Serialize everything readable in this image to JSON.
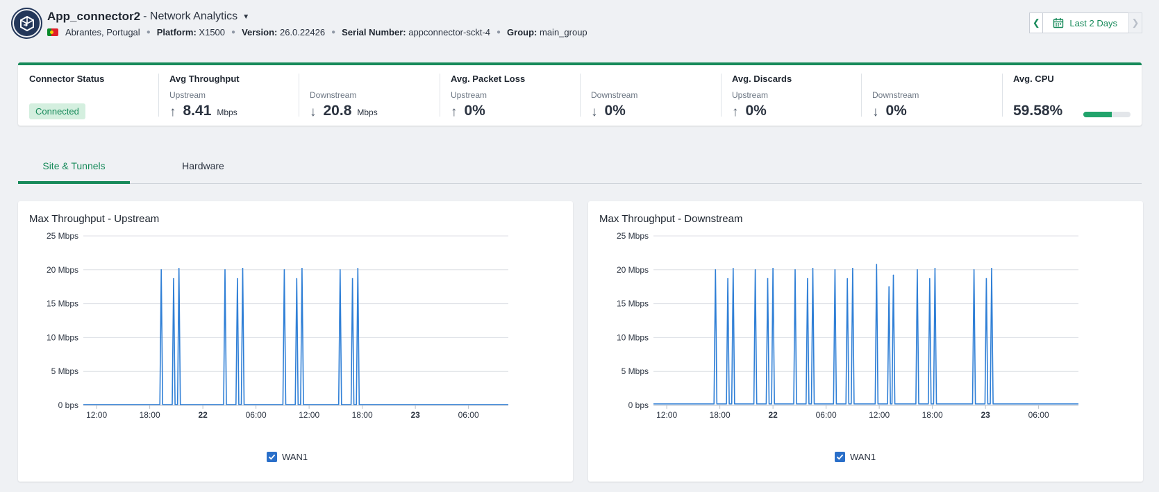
{
  "header": {
    "app_name": "App_connector2",
    "title_suffix": "- Network Analytics",
    "location": "Abrantes, Portugal",
    "platform_label": "Platform:",
    "platform_value": "X1500",
    "version_label": "Version:",
    "version_value": "26.0.22426",
    "serial_label": "Serial Number:",
    "serial_value": "appconnector-sckt-4",
    "group_label": "Group:",
    "group_value": "main_group",
    "date_range": "Last 2 Days"
  },
  "kpi": {
    "connector_status": {
      "title": "Connector Status",
      "value": "Connected"
    },
    "throughput": {
      "title": "Avg Throughput",
      "up_label": "Upstream",
      "up_value": "8.41",
      "up_unit": "Mbps",
      "down_label": "Downstream",
      "down_value": "20.8",
      "down_unit": "Mbps"
    },
    "packet_loss": {
      "title": "Avg. Packet Loss",
      "up_label": "Upstream",
      "up_value": "0%",
      "down_label": "Downstream",
      "down_value": "0%"
    },
    "discards": {
      "title": "Avg. Discards",
      "up_label": "Upstream",
      "up_value": "0%",
      "down_label": "Downstream",
      "down_value": "0%"
    },
    "cpu": {
      "title": "Avg. CPU",
      "value": "59.58%",
      "fraction": 0.5958
    }
  },
  "tabs": [
    {
      "label": "Site & Tunnels",
      "active": true
    },
    {
      "label": "Hardware",
      "active": false
    }
  ],
  "colors": {
    "accent": "#178a5a",
    "series": "#2f7fd6"
  },
  "chart_data": [
    {
      "type": "line",
      "title": "Max Throughput - Upstream",
      "ylim": [
        0,
        25
      ],
      "yticks": [
        "0 bps",
        "5 Mbps",
        "10 Mbps",
        "15 Mbps",
        "20 Mbps",
        "25 Mbps"
      ],
      "xlim": [
        10.5,
        58.5
      ],
      "xticks": [
        {
          "t": 12,
          "label": "12:00",
          "bold": false
        },
        {
          "t": 18,
          "label": "18:00",
          "bold": false
        },
        {
          "t": 24,
          "label": "22",
          "bold": true
        },
        {
          "t": 30,
          "label": "06:00",
          "bold": false
        },
        {
          "t": 36,
          "label": "12:00",
          "bold": false
        },
        {
          "t": 42,
          "label": "18:00",
          "bold": false
        },
        {
          "t": 48,
          "label": "23",
          "bold": true
        },
        {
          "t": 54,
          "label": "06:00",
          "bold": false
        }
      ],
      "series": [
        {
          "name": "WAN1",
          "spikes": [
            [
              19.3,
              20.0
            ],
            [
              20.7,
              18.7
            ],
            [
              21.3,
              20.2
            ],
            [
              26.5,
              20.0
            ],
            [
              27.9,
              18.7
            ],
            [
              28.5,
              20.2
            ],
            [
              33.2,
              20.0
            ],
            [
              34.6,
              18.7
            ],
            [
              35.2,
              20.2
            ],
            [
              39.5,
              20.0
            ],
            [
              40.9,
              18.7
            ],
            [
              41.5,
              20.2
            ]
          ],
          "baseline": 0.1
        }
      ],
      "legend": "WAN1"
    },
    {
      "type": "line",
      "title": "Max Throughput - Downstream",
      "ylim": [
        0,
        25
      ],
      "yticks": [
        "0 bps",
        "5 Mbps",
        "10 Mbps",
        "15 Mbps",
        "20 Mbps",
        "25 Mbps"
      ],
      "xlim": [
        10.5,
        58.5
      ],
      "xticks": [
        {
          "t": 12,
          "label": "12:00",
          "bold": false
        },
        {
          "t": 18,
          "label": "18:00",
          "bold": false
        },
        {
          "t": 24,
          "label": "22",
          "bold": true
        },
        {
          "t": 30,
          "label": "06:00",
          "bold": false
        },
        {
          "t": 36,
          "label": "12:00",
          "bold": false
        },
        {
          "t": 42,
          "label": "18:00",
          "bold": false
        },
        {
          "t": 48,
          "label": "23",
          "bold": true
        },
        {
          "t": 54,
          "label": "06:00",
          "bold": false
        }
      ],
      "series": [
        {
          "name": "WAN1",
          "spikes": [
            [
              17.5,
              20.0
            ],
            [
              18.9,
              18.7
            ],
            [
              19.5,
              20.2
            ],
            [
              22.0,
              20.0
            ],
            [
              23.4,
              18.7
            ],
            [
              24.0,
              20.2
            ],
            [
              26.5,
              20.0
            ],
            [
              27.9,
              18.7
            ],
            [
              28.5,
              20.2
            ],
            [
              31.0,
              20.0
            ],
            [
              32.4,
              18.7
            ],
            [
              33.0,
              20.2
            ],
            [
              35.7,
              20.8
            ],
            [
              37.1,
              17.5
            ],
            [
              37.6,
              19.2
            ],
            [
              40.3,
              20.0
            ],
            [
              41.7,
              18.7
            ],
            [
              42.3,
              20.2
            ],
            [
              46.7,
              20.0
            ],
            [
              48.1,
              18.7
            ],
            [
              48.7,
              20.2
            ]
          ],
          "baseline": 0.2
        }
      ],
      "legend": "WAN1"
    }
  ]
}
